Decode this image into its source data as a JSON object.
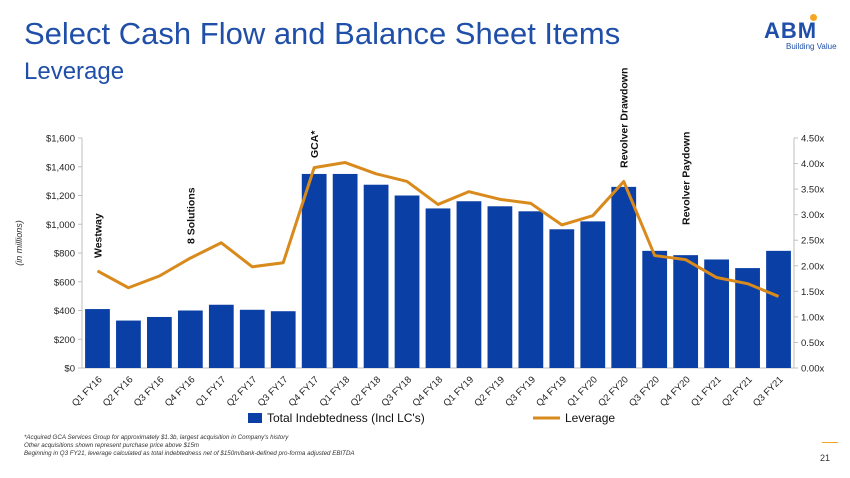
{
  "header": {
    "title": "Select Cash Flow and Balance Sheet Items",
    "subtitle": "Leverage"
  },
  "logo": {
    "text": "ABM",
    "tagline": "Building Value"
  },
  "footnotes": [
    "*Acquired GCA Services Group for approximately $1.3b, largest acquisition in Company's history",
    "Other acquisitions shown represent purchase price above $15m",
    "Beginning in Q3 FY21, leverage calculated as total indebtedness net of $150m/bank-defined pro-forma adjusted EBITDA"
  ],
  "page_number": "21",
  "colors": {
    "bars": "#0a3fa6",
    "line": "#d98a1c",
    "title": "#1f4fa8"
  },
  "chart_data": {
    "type": "bar",
    "title": "",
    "ylabel": "(in millions)",
    "ylim": [
      0,
      1600
    ],
    "y2lim": [
      0,
      4.5
    ],
    "yticks": [
      "$0",
      "$200",
      "$400",
      "$600",
      "$800",
      "$1,000",
      "$1,200",
      "$1,400",
      "$1,600"
    ],
    "y2ticks": [
      "0.00x",
      "0.50x",
      "1.00x",
      "1.50x",
      "2.00x",
      "2.50x",
      "3.00x",
      "3.50x",
      "4.00x",
      "4.50x"
    ],
    "categories": [
      "Q1 FY16",
      "Q2 FY16",
      "Q3 FY16",
      "Q4 FY16",
      "Q1 FY17",
      "Q2 FY17",
      "Q3 FY17",
      "Q4 FY17",
      "Q1 FY18",
      "Q2 FY18",
      "Q3 FY18",
      "Q4 FY18",
      "Q1 FY19",
      "Q2 FY19",
      "Q3 FY19",
      "Q4 FY19",
      "Q1 FY20",
      "Q2 FY20",
      "Q3 FY20",
      "Q4 FY20",
      "Q1 FY21",
      "Q2 FY21",
      "Q3 FY21"
    ],
    "series": [
      {
        "name": "Total Indebtedness (Incl LC's)",
        "type": "bar",
        "axis": "left",
        "values": [
          410,
          330,
          355,
          400,
          440,
          405,
          395,
          1350,
          1350,
          1275,
          1200,
          1110,
          1160,
          1125,
          1090,
          965,
          1020,
          1260,
          815,
          785,
          755,
          695,
          815
        ]
      },
      {
        "name": "Leverage",
        "type": "line",
        "axis": "right",
        "values": [
          1.9,
          1.57,
          1.8,
          2.15,
          2.45,
          1.98,
          2.06,
          3.92,
          4.02,
          3.8,
          3.65,
          3.2,
          3.45,
          3.3,
          3.22,
          2.8,
          2.98,
          3.65,
          2.2,
          2.12,
          1.77,
          1.65,
          1.4
        ]
      }
    ],
    "annotations": [
      {
        "text": "Westway",
        "index": 0
      },
      {
        "text": "8 Solutions",
        "index": 3
      },
      {
        "text": "GCA*",
        "index": 7
      },
      {
        "text": "Revolver Drawdown",
        "index": 17
      },
      {
        "text": "Revolver Paydown",
        "index": 19
      }
    ],
    "legend": "bottom"
  }
}
